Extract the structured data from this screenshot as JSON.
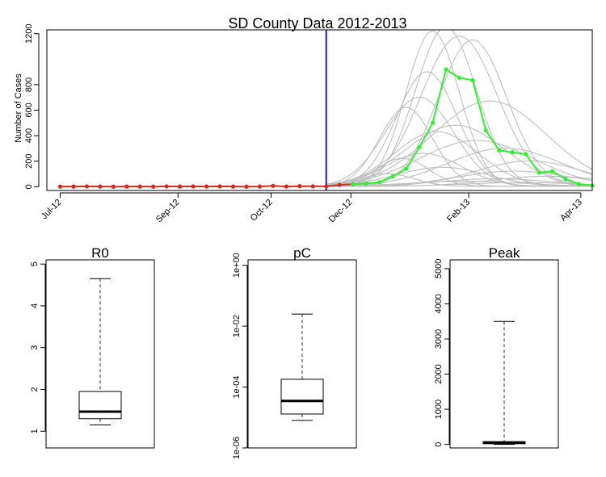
{
  "colors": {
    "observed": "#d42a1e",
    "predicted": "#33ee33",
    "simulations": "#bfbfbf",
    "divider": "#1a1acc",
    "axis": "#000000",
    "box_whisker": "#777777"
  },
  "chart_data": [
    {
      "type": "line",
      "title": "SD County Data 2012-2013",
      "xlabel": "",
      "ylabel": "Number of Cases",
      "xlim": [
        "2012-06-24",
        "2013-04-07"
      ],
      "ylim": [
        -30,
        1230
      ],
      "y_ticks": [
        0,
        200,
        400,
        600,
        800,
        1200
      ],
      "x_ticks": [
        {
          "date": "2012-07-01",
          "label": "Jul-12"
        },
        {
          "date": "2012-09-01",
          "label": "Sep-12"
        },
        {
          "date": "2012-10-20",
          "label": "Oct-12"
        },
        {
          "date": "2012-12-01",
          "label": "Dec-12"
        },
        {
          "date": "2013-02-01",
          "label": "Feb-13"
        },
        {
          "date": "2013-04-01",
          "label": "Apr-13"
        }
      ],
      "grid": false,
      "vertical_line": {
        "x": "2012-11-18"
      },
      "series": [
        {
          "role": "observed",
          "points": [
            {
              "x": "2012-07-01",
              "y": 1
            },
            {
              "x": "2012-07-08",
              "y": 1
            },
            {
              "x": "2012-07-15",
              "y": 2
            },
            {
              "x": "2012-07-22",
              "y": 1
            },
            {
              "x": "2012-07-29",
              "y": 0
            },
            {
              "x": "2012-08-05",
              "y": 1
            },
            {
              "x": "2012-08-12",
              "y": 1
            },
            {
              "x": "2012-08-19",
              "y": 0
            },
            {
              "x": "2012-08-26",
              "y": 2
            },
            {
              "x": "2012-09-02",
              "y": 1
            },
            {
              "x": "2012-09-09",
              "y": 2
            },
            {
              "x": "2012-09-16",
              "y": 1
            },
            {
              "x": "2012-09-23",
              "y": 2
            },
            {
              "x": "2012-09-30",
              "y": 1
            },
            {
              "x": "2012-10-07",
              "y": 0
            },
            {
              "x": "2012-10-14",
              "y": 1
            },
            {
              "x": "2012-10-21",
              "y": 6
            },
            {
              "x": "2012-10-28",
              "y": 1
            },
            {
              "x": "2012-11-04",
              "y": 4
            },
            {
              "x": "2012-11-11",
              "y": 3
            },
            {
              "x": "2012-11-18",
              "y": 2
            },
            {
              "x": "2012-11-25",
              "y": 14
            },
            {
              "x": "2012-12-02",
              "y": 20
            }
          ]
        },
        {
          "role": "predicted",
          "points": [
            {
              "x": "2012-12-02",
              "y": 20
            },
            {
              "x": "2012-12-09",
              "y": 25
            },
            {
              "x": "2012-12-16",
              "y": 35
            },
            {
              "x": "2012-12-23",
              "y": 80
            },
            {
              "x": "2012-12-30",
              "y": 140
            },
            {
              "x": "2013-01-06",
              "y": 310
            },
            {
              "x": "2013-01-13",
              "y": 500
            },
            {
              "x": "2013-01-20",
              "y": 920
            },
            {
              "x": "2013-01-27",
              "y": 855
            },
            {
              "x": "2013-02-03",
              "y": 835
            },
            {
              "x": "2013-02-10",
              "y": 440
            },
            {
              "x": "2013-02-17",
              "y": 285
            },
            {
              "x": "2013-02-24",
              "y": 270
            },
            {
              "x": "2013-03-03",
              "y": 255
            },
            {
              "x": "2013-03-10",
              "y": 110
            },
            {
              "x": "2013-03-17",
              "y": 120
            },
            {
              "x": "2013-03-24",
              "y": 60
            },
            {
              "x": "2013-03-31",
              "y": 20
            },
            {
              "x": "2013-04-07",
              "y": 10
            }
          ]
        }
      ],
      "simulations": {
        "start": "2012-11-18",
        "end": "2013-04-07",
        "peaks": [
          {
            "t": "2013-01-06",
            "h": 700,
            "w": 18
          },
          {
            "t": "2013-01-13",
            "h": 1220,
            "w": 14
          },
          {
            "t": "2013-01-20",
            "h": 1250,
            "w": 16
          },
          {
            "t": "2013-01-27",
            "h": 1180,
            "w": 20
          },
          {
            "t": "2013-01-10",
            "h": 900,
            "w": 16
          },
          {
            "t": "2013-02-03",
            "h": 1150,
            "w": 18
          },
          {
            "t": "2012-12-30",
            "h": 620,
            "w": 14
          },
          {
            "t": "2013-02-12",
            "h": 670,
            "w": 30
          },
          {
            "t": "2013-01-25",
            "h": 480,
            "w": 26
          },
          {
            "t": "2013-02-05",
            "h": 360,
            "w": 30
          },
          {
            "t": "2013-01-15",
            "h": 430,
            "w": 22
          },
          {
            "t": "2013-02-20",
            "h": 300,
            "w": 30
          },
          {
            "t": "2012-12-28",
            "h": 220,
            "w": 14
          },
          {
            "t": "2013-01-08",
            "h": 260,
            "w": 20
          },
          {
            "t": "2013-03-05",
            "h": 200,
            "w": 28
          },
          {
            "t": "2013-02-25",
            "h": 120,
            "w": 30
          },
          {
            "t": "2013-01-18",
            "h": 150,
            "w": 24
          },
          {
            "t": "2013-03-15",
            "h": 80,
            "w": 30
          },
          {
            "t": "2012-12-20",
            "h": 100,
            "w": 14
          },
          {
            "t": "2013-02-15",
            "h": 60,
            "w": 30
          },
          {
            "t": "2013-01-30",
            "h": 40,
            "w": 30
          },
          {
            "t": "2013-03-01",
            "h": 30,
            "w": 30
          }
        ]
      }
    },
    {
      "type": "box",
      "title": "R0",
      "scale": "linear",
      "ylim": [
        0.6,
        5.1
      ],
      "y_ticks": [
        {
          "v": 1,
          "label": "1"
        },
        {
          "v": 2,
          "label": "2"
        },
        {
          "v": 3,
          "label": "3"
        },
        {
          "v": 4,
          "label": "4"
        },
        {
          "v": 5,
          "label": "5"
        }
      ],
      "whisker_low": 1.15,
      "q1": 1.3,
      "median": 1.47,
      "q3": 1.95,
      "whisker_high": 4.65
    },
    {
      "type": "box",
      "title": "pC",
      "scale": "log10",
      "ylim": [
        1e-06,
        1.5
      ],
      "y_ticks": [
        {
          "v": 1e-06,
          "label": "1e-06"
        },
        {
          "v": 0.0001,
          "label": "1e-04"
        },
        {
          "v": 0.01,
          "label": "1e-02"
        },
        {
          "v": 1,
          "label": "1e+00"
        }
      ],
      "whisker_low": 8e-06,
      "q1": 1.3e-05,
      "median": 3.5e-05,
      "q3": 0.00018,
      "whisker_high": 0.025
    },
    {
      "type": "box",
      "title": "Peak",
      "scale": "linear",
      "ylim": [
        -100,
        5250
      ],
      "y_ticks": [
        {
          "v": 0,
          "label": "0"
        },
        {
          "v": 1000,
          "label": "1000"
        },
        {
          "v": 2000,
          "label": "2000"
        },
        {
          "v": 3000,
          "label": "3000"
        },
        {
          "v": 4000,
          "label": "4000"
        },
        {
          "v": 5000,
          "label": "5000"
        }
      ],
      "whisker_low": 0,
      "q1": 20,
      "median": 45,
      "q3": 80,
      "whisker_high": 3500
    }
  ]
}
